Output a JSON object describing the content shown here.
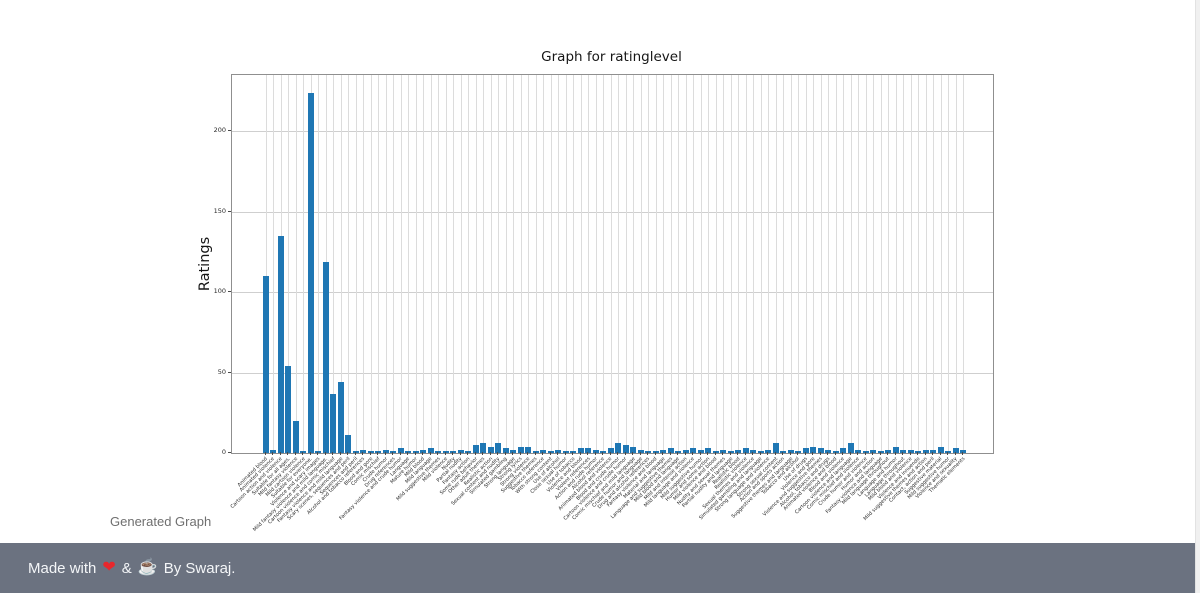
{
  "page": {
    "caption": "Generated Graph"
  },
  "footer": {
    "text_prefix": "Made with",
    "heart_icon": "❤",
    "separator": "&",
    "coffee_icon": "☕",
    "text_suffix": "By Swaraj.",
    "bg_color": "#6b7280",
    "heart_color": "#e8272c",
    "text_color": "#f4f6f8"
  },
  "chart_data": {
    "type": "bar",
    "title": "Graph for ratinglevel",
    "xlabel": "",
    "ylabel": "Ratings",
    "ylim": [
      0,
      235
    ],
    "yticks": [
      0,
      50,
      100,
      150,
      200
    ],
    "grid": true,
    "legend": "none",
    "bar_color": "#1f77b4",
    "categories": [
      "Animated blood",
      "Animated violence",
      "Cartoon action and violence",
      "Suitable for all ages.",
      "Mild fantasy violence",
      "Mild cartoon violence",
      "Suitable for everyone.",
      "Violence and scary images",
      "Mild fantasy violence and mild language.",
      "Cartoon violence and comic mischief",
      "Fantasy violence and mild language",
      "Scary scenes, sequences and peril",
      "Sequences and peril",
      "Alcohol and tobacco references",
      "Blood and gore",
      "Comic mischief",
      "Crude humor",
      "Drug references",
      "Fantasy violence and crude humor",
      "Language",
      "Mature humor",
      "Mild blood",
      "Mild language",
      "Mild suggestive themes",
      "Mild violence",
      "Nudity",
      "Partial nudity",
      "Fantasy action",
      "Some rude behavior",
      "Other adult themes",
      "Realistic action",
      "Sexual content and nudity",
      "Simulated gambling",
      "Strong language",
      "Strong lyrics",
      "Strong violence",
      "Suggestive themes",
      "Tobacco reference",
      "With strong content",
      "Use of alcohol",
      "Close sexual humor",
      "Use of tobacco",
      "Violence and blood",
      "Violent references",
      "Action and rude humor",
      "Alcohol reference",
      "Animated blood and violence",
      "Blood and crude humor",
      "Cartoon violence and crude humor",
      "Comic mischief and mild language",
      "Crude humor and language",
      "Drug and alcohol references",
      "Fantasy violence and blood",
      "Material and language",
      "Language and suggestive themes",
      "Mild blood and language",
      "Mild and intense action",
      "Mild language and violence",
      "Mild suggestive humor",
      "Humor and some action",
      "Mild violence and blood",
      "Nudity and sexual themes",
      "Partial nudity and language",
      "Realistic blood",
      "Realistic violence",
      "Sexual themes and violence",
      "Simulated gambling and language",
      "Strong language and violence",
      "Strong sexual content",
      "Action and sports action",
      "Suggestive themes and language",
      "Tobacco and alcohol",
      "Use of drugs",
      "Violence and gore",
      "Violence and suggestive themes",
      "Alcohol, tobacco and drugs",
      "Animated violence and blood",
      "Blood and violence",
      "Cartoon violence and language",
      "Comic mischief and violence",
      "Crude humor and violence",
      "Humor and action",
      "Fantasy violence and language",
      "Mild language throughout",
      "Language and humor",
      "Language throughout",
      "Mild blood and violence",
      "Violence and innuendo",
      "Mild suggestive themes and action",
      "Contact, action and peril",
      "Suggestive material",
      "Mild suggestive humor",
      "Violence and sexuality",
      "Thematic elements"
    ],
    "values": [
      110,
      2,
      135,
      54,
      20,
      1,
      224,
      1,
      119,
      37,
      44,
      11,
      1,
      2,
      1,
      1,
      2,
      1,
      3,
      1,
      1,
      2,
      3,
      1,
      1,
      1,
      2,
      1,
      5,
      6,
      4,
      6,
      3,
      2,
      4,
      4,
      1,
      2,
      1,
      2,
      1,
      1,
      3,
      3,
      2,
      1,
      3,
      6,
      5,
      4,
      2,
      1,
      1,
      2,
      3,
      1,
      2,
      3,
      2,
      3,
      1,
      2,
      1,
      2,
      3,
      2,
      1,
      2,
      6,
      1,
      2,
      1,
      3,
      4,
      3,
      2,
      1,
      3,
      6,
      2,
      1,
      2,
      1,
      2,
      4,
      2,
      2,
      1,
      2,
      2,
      4,
      1,
      3,
      2
    ]
  }
}
